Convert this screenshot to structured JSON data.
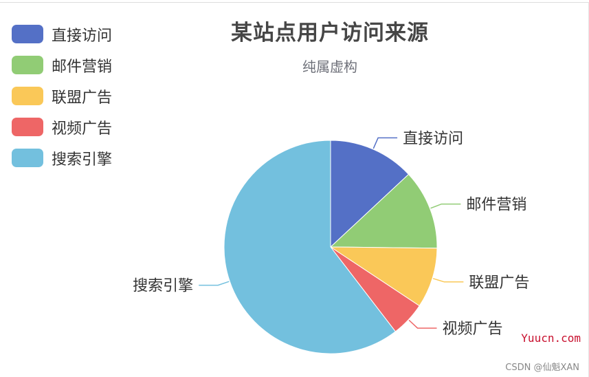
{
  "chart_data": {
    "type": "pie",
    "title": "某站点用户访问来源",
    "subtitle": "纯属虚构",
    "legend_position": "top-left",
    "categories": [
      "直接访问",
      "邮件营销",
      "联盟广告",
      "视频广告",
      "搜索引擎"
    ],
    "values": [
      335,
      310,
      234,
      135,
      1548
    ],
    "colors": [
      "#5470c6",
      "#91cc75",
      "#fac858",
      "#ee6666",
      "#73c0de"
    ]
  },
  "watermark": {
    "site": "Yuucn.com",
    "author": "CSDN @仙魁XAN"
  }
}
